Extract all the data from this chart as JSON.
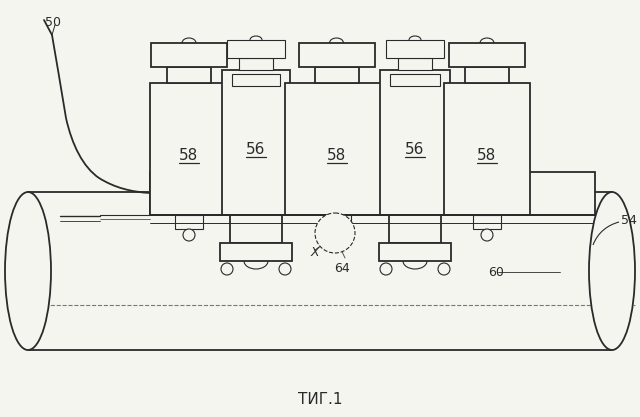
{
  "bg_color": "#f5f5f0",
  "lc": "#2a2a2a",
  "lw": 1.3,
  "tlw": 0.8,
  "title": "ΤИГ.1",
  "fig_w": 6.4,
  "fig_h": 4.17,
  "dpi": 100
}
